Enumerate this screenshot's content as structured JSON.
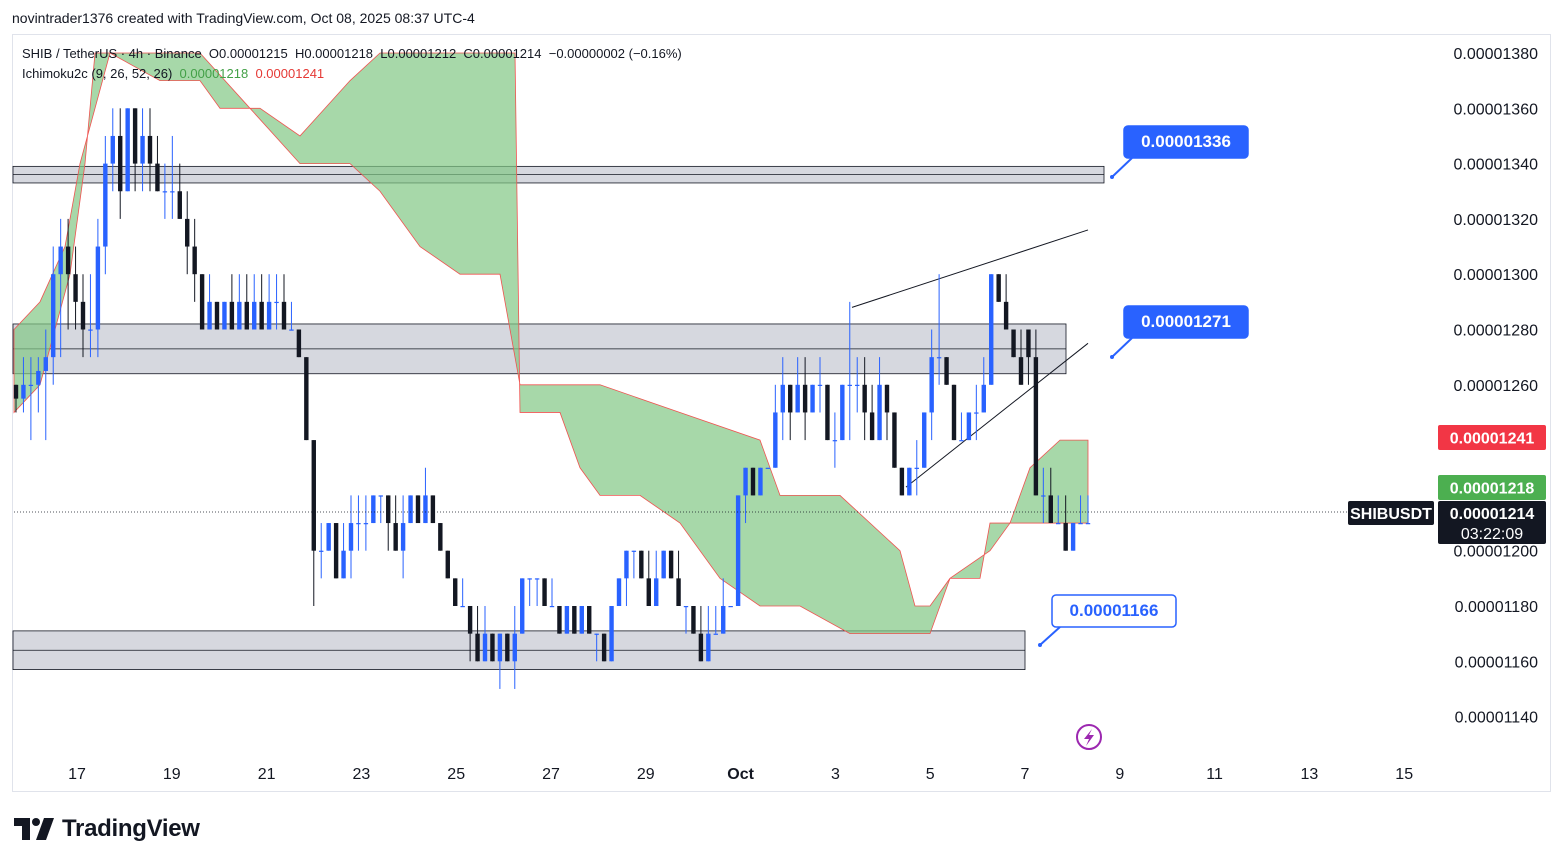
{
  "header": {
    "credit": "novintrader1376 created with TradingView.com, Oct 08, 2025 08:37 UTC-4"
  },
  "legend": {
    "symbol": "SHIB / TetherUS · 4h · Binance",
    "open": "O0.00001215",
    "high": "H0.00001218",
    "low": "L0.00001212",
    "close": "C0.00001214",
    "change": "−0.00000002 (−0.16%)",
    "indicator": "Ichimoku2c (9, 26, 52, 26)",
    "indicator_value_a": "0.00001218",
    "indicator_value_b": "0.00001241"
  },
  "brand": {
    "name": "TradingView",
    "icon": "tradingview-logo-icon"
  },
  "colors": {
    "up": "#2962ff",
    "down": "#131722",
    "cloud": "#81c784",
    "cloud_line_a": "#43a047",
    "cloud_line_b": "#ef5350",
    "zone_fill": "#d1d4dc",
    "callout": "#2962ff",
    "price_red": "#f23645",
    "price_green": "#4caf50",
    "last_price_bg": "#131722"
  },
  "chart_data": {
    "type": "candlestick",
    "symbol": "SHIBUSDT",
    "timeframe": "4h",
    "x_tick_labels": [
      "17",
      "19",
      "21",
      "23",
      "25",
      "27",
      "29",
      "Oct",
      "3",
      "5",
      "7",
      "9",
      "11",
      "13",
      "15"
    ],
    "y_tick_labels": [
      "0.00001380",
      "0.00001360",
      "0.00001340",
      "0.00001320",
      "0.00001300",
      "0.00001280",
      "0.00001260",
      "0.00001200",
      "0.00001180",
      "0.00001160",
      "0.00001140"
    ],
    "ylim": [
      1.13e-05,
      1.39e-05
    ],
    "price_labels": [
      {
        "text": "0.00001241",
        "kind": "ichimoku-b"
      },
      {
        "text": "0.00001218",
        "kind": "ichimoku-a"
      },
      {
        "text": "SHIBUSDT",
        "kind": "symbol"
      },
      {
        "text": "0.00001214",
        "kind": "last-price"
      },
      {
        "text": "03:22:09",
        "kind": "countdown"
      }
    ],
    "callouts": [
      {
        "text": "0.00001336",
        "value": 1.336e-05,
        "style": "filled"
      },
      {
        "text": "0.00001271",
        "value": 1.271e-05,
        "style": "filled"
      },
      {
        "text": "0.00001166",
        "value": 1.166e-05,
        "style": "outline"
      }
    ],
    "zones": [
      {
        "from": 1.333e-05,
        "to": 1.339e-05
      },
      {
        "from": 1.264e-05,
        "to": 1.282e-05
      },
      {
        "from": 1.157e-05,
        "to": 1.171e-05
      }
    ],
    "candles": [
      [
        1.26e-05,
        1.26e-05,
        1.25e-05,
        1.255e-05
      ],
      [
        1.255e-05,
        1.27e-05,
        1.25e-05,
        1.26e-05
      ],
      [
        1.26e-05,
        1.27e-05,
        1.24e-05,
        1.26e-05
      ],
      [
        1.26e-05,
        1.27e-05,
        1.25e-05,
        1.265e-05
      ],
      [
        1.265e-05,
        1.28e-05,
        1.24e-05,
        1.27e-05
      ],
      [
        1.27e-05,
        1.31e-05,
        1.26e-05,
        1.3e-05
      ],
      [
        1.3e-05,
        1.32e-05,
        1.27e-05,
        1.31e-05
      ],
      [
        1.31e-05,
        1.32e-05,
        1.28e-05,
        1.3e-05
      ],
      [
        1.3e-05,
        1.31e-05,
        1.28e-05,
        1.29e-05
      ],
      [
        1.29e-05,
        1.3e-05,
        1.27e-05,
        1.28e-05
      ],
      [
        1.28e-05,
        1.3e-05,
        1.27e-05,
        1.28e-05
      ],
      [
        1.28e-05,
        1.32e-05,
        1.27e-05,
        1.31e-05
      ],
      [
        1.31e-05,
        1.35e-05,
        1.3e-05,
        1.34e-05
      ],
      [
        1.34e-05,
        1.36e-05,
        1.33e-05,
        1.35e-05
      ],
      [
        1.35e-05,
        1.36e-05,
        1.32e-05,
        1.33e-05
      ],
      [
        1.33e-05,
        1.36e-05,
        1.33e-05,
        1.36e-05
      ],
      [
        1.36e-05,
        1.36e-05,
        1.33e-05,
        1.34e-05
      ],
      [
        1.34e-05,
        1.36e-05,
        1.33e-05,
        1.35e-05
      ],
      [
        1.35e-05,
        1.36e-05,
        1.33e-05,
        1.34e-05
      ],
      [
        1.34e-05,
        1.35e-05,
        1.33e-05,
        1.33e-05
      ],
      [
        1.33e-05,
        1.34e-05,
        1.32e-05,
        1.33e-05
      ],
      [
        1.33e-05,
        1.35e-05,
        1.32e-05,
        1.33e-05
      ],
      [
        1.33e-05,
        1.34e-05,
        1.32e-05,
        1.32e-05
      ],
      [
        1.32e-05,
        1.33e-05,
        1.3e-05,
        1.31e-05
      ],
      [
        1.31e-05,
        1.32e-05,
        1.29e-05,
        1.3e-05
      ],
      [
        1.3e-05,
        1.3e-05,
        1.28e-05,
        1.28e-05
      ],
      [
        1.28e-05,
        1.3e-05,
        1.28e-05,
        1.29e-05
      ],
      [
        1.29e-05,
        1.29e-05,
        1.28e-05,
        1.28e-05
      ],
      [
        1.28e-05,
        1.29e-05,
        1.28e-05,
        1.29e-05
      ],
      [
        1.29e-05,
        1.3e-05,
        1.28e-05,
        1.28e-05
      ],
      [
        1.28e-05,
        1.3e-05,
        1.28e-05,
        1.29e-05
      ],
      [
        1.29e-05,
        1.3e-05,
        1.28e-05,
        1.28e-05
      ],
      [
        1.28e-05,
        1.3e-05,
        1.28e-05,
        1.29e-05
      ],
      [
        1.29e-05,
        1.3e-05,
        1.28e-05,
        1.28e-05
      ],
      [
        1.28e-05,
        1.3e-05,
        1.28e-05,
        1.29e-05
      ],
      [
        1.29e-05,
        1.3e-05,
        1.28e-05,
        1.29e-05
      ],
      [
        1.29e-05,
        1.3e-05,
        1.28e-05,
        1.28e-05
      ],
      [
        1.28e-05,
        1.29e-05,
        1.28e-05,
        1.28e-05
      ],
      [
        1.28e-05,
        1.28e-05,
        1.27e-05,
        1.27e-05
      ],
      [
        1.27e-05,
        1.27e-05,
        1.24e-05,
        1.24e-05
      ],
      [
        1.24e-05,
        1.24e-05,
        1.18e-05,
        1.2e-05
      ],
      [
        1.2e-05,
        1.21e-05,
        1.19e-05,
        1.2e-05
      ],
      [
        1.2e-05,
        1.21e-05,
        1.2e-05,
        1.21e-05
      ],
      [
        1.21e-05,
        1.21e-05,
        1.19e-05,
        1.19e-05
      ],
      [
        1.19e-05,
        1.21e-05,
        1.19e-05,
        1.2e-05
      ],
      [
        1.2e-05,
        1.22e-05,
        1.19e-05,
        1.21e-05
      ],
      [
        1.21e-05,
        1.22e-05,
        1.2e-05,
        1.21e-05
      ],
      [
        1.21e-05,
        1.22e-05,
        1.2e-05,
        1.21e-05
      ],
      [
        1.21e-05,
        1.22e-05,
        1.21e-05,
        1.22e-05
      ],
      [
        1.22e-05,
        1.22e-05,
        1.21e-05,
        1.22e-05
      ],
      [
        1.22e-05,
        1.22e-05,
        1.2e-05,
        1.21e-05
      ],
      [
        1.21e-05,
        1.22e-05,
        1.2e-05,
        1.2e-05
      ],
      [
        1.2e-05,
        1.22e-05,
        1.19e-05,
        1.21e-05
      ],
      [
        1.21e-05,
        1.22e-05,
        1.21e-05,
        1.22e-05
      ],
      [
        1.22e-05,
        1.22e-05,
        1.21e-05,
        1.21e-05
      ],
      [
        1.21e-05,
        1.23e-05,
        1.21e-05,
        1.22e-05
      ],
      [
        1.22e-05,
        1.22e-05,
        1.21e-05,
        1.21e-05
      ],
      [
        1.21e-05,
        1.21e-05,
        1.2e-05,
        1.2e-05
      ],
      [
        1.2e-05,
        1.2e-05,
        1.19e-05,
        1.19e-05
      ],
      [
        1.19e-05,
        1.19e-05,
        1.18e-05,
        1.18e-05
      ],
      [
        1.18e-05,
        1.19e-05,
        1.18e-05,
        1.18e-05
      ],
      [
        1.18e-05,
        1.18e-05,
        1.16e-05,
        1.17e-05
      ],
      [
        1.17e-05,
        1.18e-05,
        1.16e-05,
        1.16e-05
      ],
      [
        1.16e-05,
        1.18e-05,
        1.16e-05,
        1.17e-05
      ],
      [
        1.17e-05,
        1.17e-05,
        1.16e-05,
        1.16e-05
      ],
      [
        1.16e-05,
        1.17e-05,
        1.15e-05,
        1.17e-05
      ],
      [
        1.17e-05,
        1.17e-05,
        1.16e-05,
        1.16e-05
      ],
      [
        1.16e-05,
        1.18e-05,
        1.15e-05,
        1.17e-05
      ],
      [
        1.17e-05,
        1.19e-05,
        1.17e-05,
        1.19e-05
      ],
      [
        1.19e-05,
        1.19e-05,
        1.18e-05,
        1.19e-05
      ],
      [
        1.19e-05,
        1.19e-05,
        1.18e-05,
        1.19e-05
      ],
      [
        1.19e-05,
        1.19e-05,
        1.18e-05,
        1.18e-05
      ],
      [
        1.18e-05,
        1.19e-05,
        1.18e-05,
        1.18e-05
      ],
      [
        1.18e-05,
        1.18e-05,
        1.17e-05,
        1.17e-05
      ],
      [
        1.17e-05,
        1.18e-05,
        1.17e-05,
        1.18e-05
      ],
      [
        1.18e-05,
        1.18e-05,
        1.17e-05,
        1.17e-05
      ],
      [
        1.17e-05,
        1.18e-05,
        1.17e-05,
        1.18e-05
      ],
      [
        1.18e-05,
        1.18e-05,
        1.17e-05,
        1.17e-05
      ],
      [
        1.17e-05,
        1.17e-05,
        1.16e-05,
        1.17e-05
      ],
      [
        1.17e-05,
        1.17e-05,
        1.16e-05,
        1.16e-05
      ],
      [
        1.16e-05,
        1.18e-05,
        1.16e-05,
        1.18e-05
      ],
      [
        1.18e-05,
        1.19e-05,
        1.18e-05,
        1.19e-05
      ],
      [
        1.19e-05,
        1.2e-05,
        1.18e-05,
        1.2e-05
      ],
      [
        1.2e-05,
        1.2e-05,
        1.19e-05,
        1.2e-05
      ],
      [
        1.2e-05,
        1.2e-05,
        1.19e-05,
        1.19e-05
      ],
      [
        1.19e-05,
        1.2e-05,
        1.18e-05,
        1.18e-05
      ],
      [
        1.18e-05,
        1.2e-05,
        1.18e-05,
        1.19e-05
      ],
      [
        1.19e-05,
        1.2e-05,
        1.19e-05,
        1.2e-05
      ],
      [
        1.2e-05,
        1.2e-05,
        1.19e-05,
        1.19e-05
      ],
      [
        1.19e-05,
        1.2e-05,
        1.18e-05,
        1.18e-05
      ],
      [
        1.18e-05,
        1.18e-05,
        1.17e-05,
        1.18e-05
      ],
      [
        1.18e-05,
        1.18e-05,
        1.17e-05,
        1.17e-05
      ],
      [
        1.17e-05,
        1.18e-05,
        1.16e-05,
        1.16e-05
      ],
      [
        1.16e-05,
        1.18e-05,
        1.16e-05,
        1.17e-05
      ],
      [
        1.17e-05,
        1.18e-05,
        1.17e-05,
        1.17e-05
      ],
      [
        1.17e-05,
        1.19e-05,
        1.17e-05,
        1.18e-05
      ],
      [
        1.18e-05,
        1.18e-05,
        1.18e-05,
        1.18e-05
      ],
      [
        1.18e-05,
        1.22e-05,
        1.18e-05,
        1.22e-05
      ],
      [
        1.22e-05,
        1.23e-05,
        1.21e-05,
        1.23e-05
      ],
      [
        1.23e-05,
        1.23e-05,
        1.22e-05,
        1.22e-05
      ],
      [
        1.22e-05,
        1.23e-05,
        1.22e-05,
        1.23e-05
      ],
      [
        1.23e-05,
        1.23e-05,
        1.23e-05,
        1.23e-05
      ],
      [
        1.23e-05,
        1.26e-05,
        1.23e-05,
        1.25e-05
      ],
      [
        1.25e-05,
        1.27e-05,
        1.24e-05,
        1.26e-05
      ],
      [
        1.26e-05,
        1.26e-05,
        1.24e-05,
        1.25e-05
      ],
      [
        1.25e-05,
        1.27e-05,
        1.25e-05,
        1.26e-05
      ],
      [
        1.26e-05,
        1.27e-05,
        1.24e-05,
        1.25e-05
      ],
      [
        1.25e-05,
        1.26e-05,
        1.25e-05,
        1.26e-05
      ],
      [
        1.26e-05,
        1.27e-05,
        1.25e-05,
        1.26e-05
      ],
      [
        1.26e-05,
        1.26e-05,
        1.24e-05,
        1.24e-05
      ],
      [
        1.24e-05,
        1.25e-05,
        1.23e-05,
        1.24e-05
      ],
      [
        1.24e-05,
        1.26e-05,
        1.24e-05,
        1.26e-05
      ],
      [
        1.26e-05,
        1.29e-05,
        1.24e-05,
        1.26e-05
      ],
      [
        1.26e-05,
        1.27e-05,
        1.25e-05,
        1.26e-05
      ],
      [
        1.26e-05,
        1.27e-05,
        1.24e-05,
        1.25e-05
      ],
      [
        1.25e-05,
        1.26e-05,
        1.24e-05,
        1.24e-05
      ],
      [
        1.24e-05,
        1.27e-05,
        1.24e-05,
        1.26e-05
      ],
      [
        1.26e-05,
        1.26e-05,
        1.24e-05,
        1.25e-05
      ],
      [
        1.25e-05,
        1.25e-05,
        1.23e-05,
        1.23e-05
      ],
      [
        1.23e-05,
        1.23e-05,
        1.22e-05,
        1.22e-05
      ],
      [
        1.22e-05,
        1.23e-05,
        1.22e-05,
        1.23e-05
      ],
      [
        1.23e-05,
        1.24e-05,
        1.22e-05,
        1.23e-05
      ],
      [
        1.23e-05,
        1.25e-05,
        1.23e-05,
        1.25e-05
      ],
      [
        1.25e-05,
        1.28e-05,
        1.24e-05,
        1.27e-05
      ],
      [
        1.27e-05,
        1.3e-05,
        1.26e-05,
        1.27e-05
      ],
      [
        1.27e-05,
        1.27e-05,
        1.26e-05,
        1.26e-05
      ],
      [
        1.26e-05,
        1.26e-05,
        1.24e-05,
        1.24e-05
      ],
      [
        1.24e-05,
        1.25e-05,
        1.24e-05,
        1.24e-05
      ],
      [
        1.24e-05,
        1.25e-05,
        1.24e-05,
        1.25e-05
      ],
      [
        1.25e-05,
        1.26e-05,
        1.24e-05,
        1.25e-05
      ],
      [
        1.25e-05,
        1.27e-05,
        1.25e-05,
        1.26e-05
      ],
      [
        1.26e-05,
        1.3e-05,
        1.26e-05,
        1.3e-05
      ],
      [
        1.3e-05,
        1.3e-05,
        1.29e-05,
        1.29e-05
      ],
      [
        1.29e-05,
        1.3e-05,
        1.28e-05,
        1.28e-05
      ],
      [
        1.28e-05,
        1.28e-05,
        1.27e-05,
        1.27e-05
      ],
      [
        1.27e-05,
        1.28e-05,
        1.26e-05,
        1.26e-05
      ],
      [
        1.28e-05,
        1.28e-05,
        1.26e-05,
        1.27e-05
      ],
      [
        1.27e-05,
        1.28e-05,
        1.22e-05,
        1.22e-05
      ],
      [
        1.22e-05,
        1.23e-05,
        1.21e-05,
        1.22e-05
      ],
      [
        1.22e-05,
        1.23e-05,
        1.21e-05,
        1.21e-05
      ],
      [
        1.21e-05,
        1.22e-05,
        1.21e-05,
        1.21e-05
      ],
      [
        1.21e-05,
        1.22e-05,
        1.2e-05,
        1.2e-05
      ],
      [
        1.2e-05,
        1.21e-05,
        1.2e-05,
        1.21e-05
      ],
      [
        1.21e-05,
        1.22e-05,
        1.21e-05,
        1.21e-05
      ],
      [
        1.21e-05,
        1.22e-05,
        1.21e-05,
        1.21e-05
      ]
    ]
  }
}
